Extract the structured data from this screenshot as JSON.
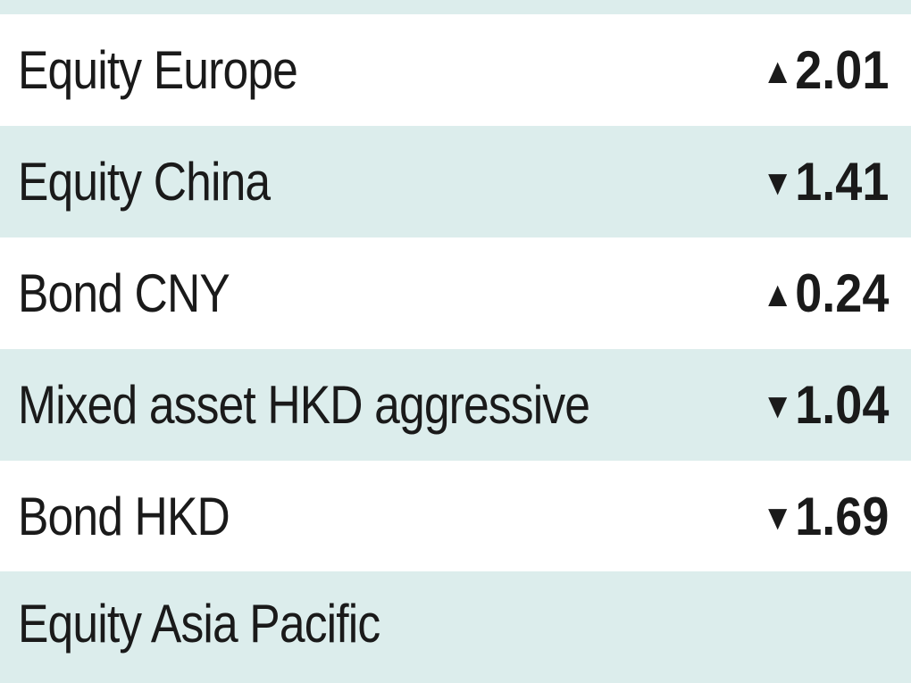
{
  "colors": {
    "stripe": "#dcedec",
    "background": "#ffffff",
    "text": "#1a1a1a"
  },
  "rows": [
    {
      "label": "Equity Europe",
      "direction": "up",
      "arrow": "▲",
      "value": "2.01"
    },
    {
      "label": "Equity China",
      "direction": "down",
      "arrow": "▼",
      "value": "1.41"
    },
    {
      "label": "Bond CNY",
      "direction": "up",
      "arrow": "▲",
      "value": "0.24"
    },
    {
      "label": "Mixed asset HKD aggressive",
      "direction": "down",
      "arrow": "▼",
      "value": "1.04"
    },
    {
      "label": "Bond HKD",
      "direction": "down",
      "arrow": "▼",
      "value": "1.69"
    },
    {
      "label": "Equity Asia Pacific",
      "arrow": "",
      "value": ""
    }
  ]
}
